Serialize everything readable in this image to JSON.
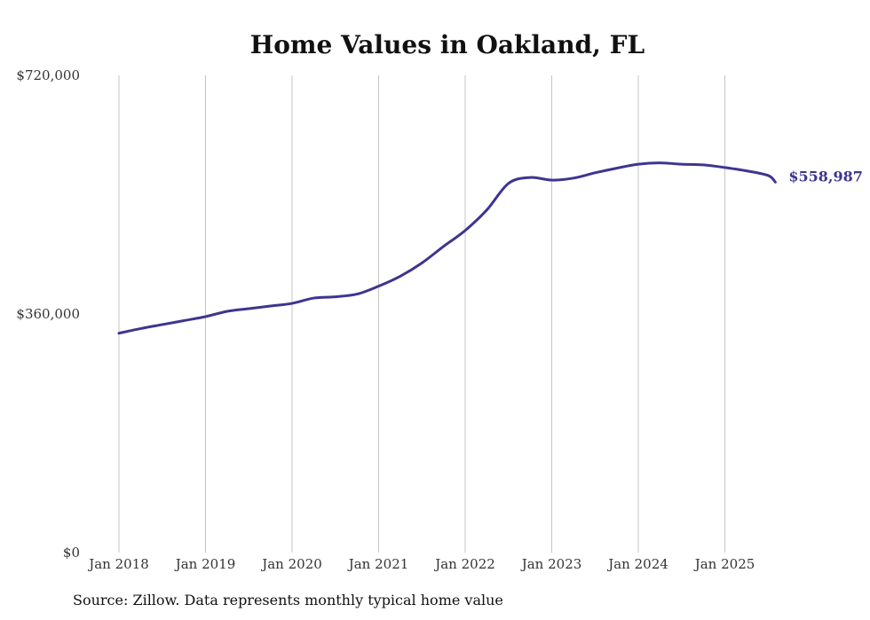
{
  "chart_data": {
    "type": "line",
    "title": "Home Values in Oakland, FL",
    "xlabel": "",
    "ylabel": "",
    "x_tick_labels": [
      "Jan 2018",
      "Jan 2019",
      "Jan 2020",
      "Jan 2021",
      "Jan 2022",
      "Jan 2023",
      "Jan 2024",
      "Jan 2025"
    ],
    "y_tick_labels": [
      "$720,000",
      "$360,000",
      "$0"
    ],
    "y_ticks": [
      720000,
      360000,
      0
    ],
    "ylim": [
      0,
      720000
    ],
    "xlim": [
      "2018-01",
      "2025-09"
    ],
    "grid": "vertical",
    "line_color": "#3d3590",
    "end_label": "$558,987",
    "series": [
      {
        "x": [
          "2018-01",
          "2018-04",
          "2018-07",
          "2018-10",
          "2019-01",
          "2019-04",
          "2019-07",
          "2019-10",
          "2020-01",
          "2020-04",
          "2020-07",
          "2020-10",
          "2021-01",
          "2021-04",
          "2021-07",
          "2021-10",
          "2022-01",
          "2022-04",
          "2022-07",
          "2022-10",
          "2023-01",
          "2023-04",
          "2023-07",
          "2023-10",
          "2024-01",
          "2024-04",
          "2024-07",
          "2024-10",
          "2025-01",
          "2025-04",
          "2025-07",
          "2025-08"
        ],
        "values": [
          331000,
          338000,
          344000,
          350000,
          356000,
          364000,
          368000,
          372000,
          376000,
          384000,
          386000,
          390000,
          402000,
          417000,
          437000,
          462000,
          486000,
          517000,
          557000,
          566000,
          562000,
          565000,
          573000,
          580000,
          586000,
          588000,
          586000,
          585000,
          581000,
          576000,
          569000,
          558987
        ]
      }
    ]
  },
  "source_text": "Source: Zillow. Data represents monthly typical home value"
}
